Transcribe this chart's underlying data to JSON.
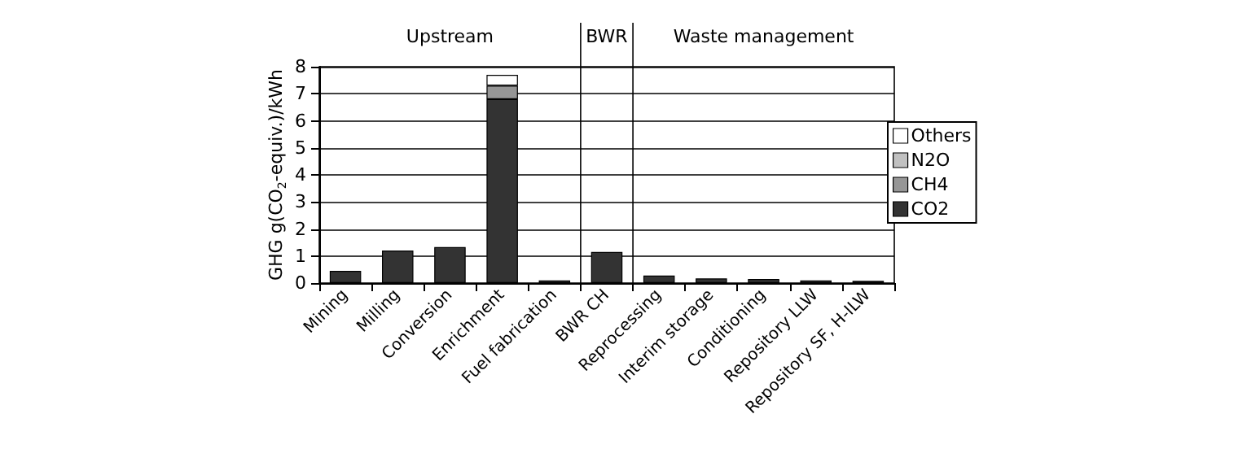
{
  "chart_data": {
    "type": "bar",
    "stacked": true,
    "ylabel": "GHG g(CO$_{2}$-equiv.)/kWh",
    "categories": [
      "Mining",
      "Milling",
      "Conversion",
      "Enrichment",
      "Fuel fabrication",
      "BWR CH",
      "Reprocessing",
      "Interim storage",
      "Conditioning",
      "Repository LLW",
      "Repository SF, H-ILW"
    ],
    "series": [
      {
        "name": "CO2",
        "color": "#333333",
        "values": [
          0.45,
          1.2,
          1.33,
          6.8,
          0.1,
          1.15,
          0.28,
          0.17,
          0.15,
          0.1,
          0.08
        ]
      },
      {
        "name": "CH4",
        "color": "#969696",
        "values": [
          null,
          null,
          null,
          0.5,
          null,
          null,
          null,
          null,
          null,
          null,
          null
        ]
      },
      {
        "name": "N2O",
        "color": "#c0c0c0",
        "values": [
          null,
          null,
          null,
          null,
          null,
          null,
          null,
          null,
          null,
          null,
          null
        ]
      },
      {
        "name": "Others",
        "color": "#ffffff",
        "values": [
          null,
          null,
          null,
          0.4,
          null,
          null,
          null,
          null,
          null,
          null,
          null
        ]
      }
    ],
    "ylim": [
      0,
      8
    ],
    "yticks": [
      0,
      1,
      2,
      3,
      4,
      5,
      6,
      7,
      8
    ],
    "grid": "y",
    "legend": "right",
    "annotations": [
      "Upstream",
      "BWR",
      "Waste management"
    ]
  }
}
